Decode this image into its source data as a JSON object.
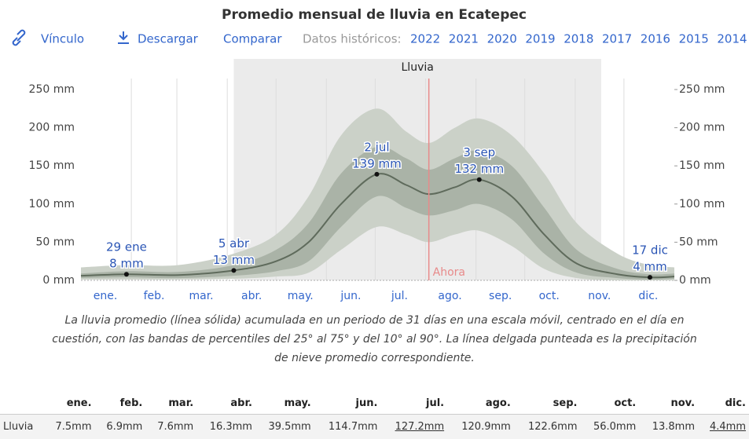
{
  "header": {
    "title": "Promedio mensual de lluvia en Ecatepec",
    "links": [
      "Vínculo",
      "Descargar",
      "Comparar"
    ],
    "history_label": "Datos históricos:",
    "years": [
      "2022",
      "2021",
      "2020",
      "2019",
      "2018",
      "2017",
      "2016",
      "2015",
      "2014"
    ]
  },
  "chart_data": {
    "type": "band-line",
    "xlim": [
      0,
      365
    ],
    "xticks": [
      {
        "value": 15,
        "label": "ene."
      },
      {
        "value": 45,
        "label": "feb."
      },
      {
        "value": 74,
        "label": "mar."
      },
      {
        "value": 105,
        "label": "abr."
      },
      {
        "value": 135,
        "label": "may."
      },
      {
        "value": 166,
        "label": "jun."
      },
      {
        "value": 196,
        "label": "jul."
      },
      {
        "value": 227,
        "label": "ago."
      },
      {
        "value": 258,
        "label": "sep."
      },
      {
        "value": 288,
        "label": "oct."
      },
      {
        "value": 319,
        "label": "nov."
      },
      {
        "value": 349,
        "label": "dic."
      }
    ],
    "xgrid": [
      31,
      59,
      90,
      120,
      151,
      181,
      212,
      243,
      273,
      304,
      334
    ],
    "ylim": [
      0,
      250
    ],
    "yticks": [
      {
        "value": 0,
        "label": "0 mm"
      },
      {
        "value": 50,
        "label": "50 mm"
      },
      {
        "value": 100,
        "label": "100 mm"
      },
      {
        "value": 150,
        "label": "150 mm"
      },
      {
        "value": 200,
        "label": "200 mm"
      },
      {
        "value": 250,
        "label": "250 mm"
      }
    ],
    "season": {
      "label": "Lluvia",
      "start": 94,
      "end": 320,
      "color": "#ebebeb"
    },
    "now": {
      "label": "Ahora",
      "x": 214,
      "color": "#e88a8a"
    },
    "x": [
      0,
      28,
      60,
      94,
      120,
      140,
      160,
      182,
      200,
      214,
      230,
      245,
      265,
      285,
      305,
      330,
      350,
      365
    ],
    "mean": [
      6,
      8,
      7,
      13,
      25,
      50,
      100,
      139,
      125,
      113,
      122,
      132,
      110,
      60,
      22,
      8,
      4,
      5
    ],
    "p25": [
      3,
      4,
      3,
      6,
      12,
      25,
      70,
      110,
      95,
      85,
      92,
      100,
      80,
      35,
      10,
      3,
      1,
      2
    ],
    "p75": [
      9,
      12,
      11,
      20,
      40,
      75,
      140,
      175,
      160,
      145,
      160,
      170,
      150,
      95,
      40,
      15,
      8,
      9
    ],
    "p10": [
      1,
      1,
      1,
      2,
      5,
      10,
      40,
      70,
      60,
      50,
      60,
      65,
      45,
      15,
      3,
      0,
      0,
      0
    ],
    "p90": [
      17,
      20,
      20,
      35,
      60,
      110,
      190,
      225,
      195,
      180,
      200,
      212,
      190,
      140,
      75,
      35,
      20,
      17
    ],
    "colors": {
      "outer": "#cbd1c8",
      "inner": "#aab3a7",
      "line": "#5f6b5c"
    },
    "annotations": [
      {
        "x": 28,
        "date": "29 ene",
        "value": 8,
        "label": "8 mm"
      },
      {
        "x": 94,
        "date": "5 abr",
        "value": 13,
        "label": "13 mm"
      },
      {
        "x": 182,
        "date": "2 jul",
        "value": 139,
        "label": "139 mm"
      },
      {
        "x": 245,
        "date": "3 sep",
        "value": 132,
        "label": "132 mm"
      },
      {
        "x": 350,
        "date": "17 dic",
        "value": 4,
        "label": "4 mm"
      }
    ],
    "caption": "La lluvia promedio (línea sólida) acumulada en un periodo de 31 días en una escala móvil, centrado en el día en cuestión, con las bandas de percentiles del 25° al 75° y del 10° al 90°. La línea delgada punteada es la precipitación de nieve promedio correspondiente."
  },
  "table": {
    "header": [
      "ene.",
      "feb.",
      "mar.",
      "abr.",
      "may.",
      "jun.",
      "jul.",
      "ago.",
      "sep.",
      "oct.",
      "nov.",
      "dic."
    ],
    "rows": [
      [
        "Lluvia",
        "7.5mm",
        "6.9mm",
        "7.6mm",
        "16.3mm",
        "39.5mm",
        "114.7mm",
        "127.2mm",
        "120.9mm",
        "122.6mm",
        "56.0mm",
        "13.8mm",
        "4.4mm"
      ]
    ],
    "underlined_cells": [
      7,
      12
    ]
  }
}
